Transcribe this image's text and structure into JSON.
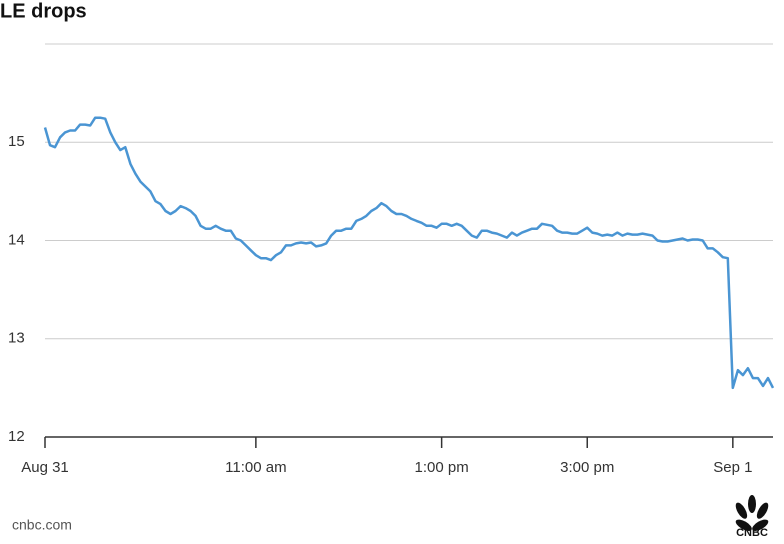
{
  "chart_data": {
    "type": "line",
    "title": "LE drops",
    "source": "cnbc.com",
    "logo": "CNBC",
    "categories": [
      "Aug 31",
      null,
      null,
      null,
      null,
      null,
      null,
      null,
      null,
      null,
      null,
      null,
      null,
      null,
      null,
      null,
      null,
      null,
      null,
      null,
      null,
      null,
      null,
      null,
      null,
      null,
      null,
      null,
      null,
      null,
      null,
      null,
      null,
      null,
      null,
      null,
      null,
      null,
      null,
      null,
      null,
      null,
      "11:00 am",
      null,
      null,
      null,
      null,
      null,
      null,
      null,
      null,
      null,
      null,
      null,
      null,
      null,
      null,
      null,
      null,
      null,
      null,
      null,
      null,
      null,
      null,
      null,
      null,
      null,
      null,
      null,
      null,
      null,
      null,
      null,
      null,
      null,
      null,
      null,
      null,
      "1:00 pm",
      null,
      null,
      null,
      null,
      null,
      null,
      null,
      null,
      null,
      null,
      null,
      null,
      null,
      null,
      null,
      null,
      null,
      null,
      null,
      null,
      null,
      null,
      null,
      null,
      null,
      null,
      null,
      null,
      "3:00 pm",
      null,
      null,
      null,
      null,
      null,
      null,
      null,
      null,
      null,
      null,
      null,
      null,
      null,
      null,
      null,
      null,
      null,
      null,
      null,
      null,
      null,
      null,
      null,
      null,
      null,
      null,
      null,
      null,
      "Sep 1",
      null,
      null,
      null,
      null,
      null,
      null,
      null,
      null
    ],
    "values": [
      15.15,
      14.97,
      14.95,
      15.05,
      15.1,
      15.12,
      15.12,
      15.18,
      15.18,
      15.17,
      15.25,
      15.25,
      15.24,
      15.1,
      15.0,
      14.92,
      14.95,
      14.78,
      14.68,
      14.6,
      14.55,
      14.5,
      14.4,
      14.37,
      14.3,
      14.27,
      14.3,
      14.35,
      14.33,
      14.3,
      14.25,
      14.15,
      14.12,
      14.12,
      14.15,
      14.12,
      14.1,
      14.1,
      14.02,
      14.0,
      13.95,
      13.9,
      13.85,
      13.82,
      13.82,
      13.8,
      13.85,
      13.88,
      13.95,
      13.95,
      13.97,
      13.98,
      13.97,
      13.98,
      13.94,
      13.95,
      13.97,
      14.05,
      14.1,
      14.1,
      14.12,
      14.12,
      14.2,
      14.22,
      14.25,
      14.3,
      14.33,
      14.38,
      14.35,
      14.3,
      14.27,
      14.27,
      14.25,
      14.22,
      14.2,
      14.18,
      14.15,
      14.15,
      14.13,
      14.17,
      14.17,
      14.15,
      14.17,
      14.15,
      14.1,
      14.05,
      14.03,
      14.1,
      14.1,
      14.08,
      14.07,
      14.05,
      14.03,
      14.08,
      14.05,
      14.08,
      14.1,
      14.12,
      14.12,
      14.17,
      14.16,
      14.15,
      14.1,
      14.08,
      14.08,
      14.07,
      14.07,
      14.1,
      14.13,
      14.08,
      14.07,
      14.05,
      14.06,
      14.05,
      14.08,
      14.05,
      14.07,
      14.06,
      14.06,
      14.07,
      14.06,
      14.05,
      14.0,
      13.99,
      13.99,
      14.0,
      14.01,
      14.02,
      14.0,
      14.01,
      14.01,
      14.0,
      13.92,
      13.92,
      13.88,
      13.83,
      13.82,
      12.5,
      12.68,
      12.63,
      12.7,
      12.6,
      12.6,
      12.52,
      12.6,
      12.5
    ],
    "color": "#4a95d3",
    "ylim": [
      12,
      16
    ],
    "yticks": [
      12,
      13,
      14,
      15
    ],
    "grid": true
  }
}
